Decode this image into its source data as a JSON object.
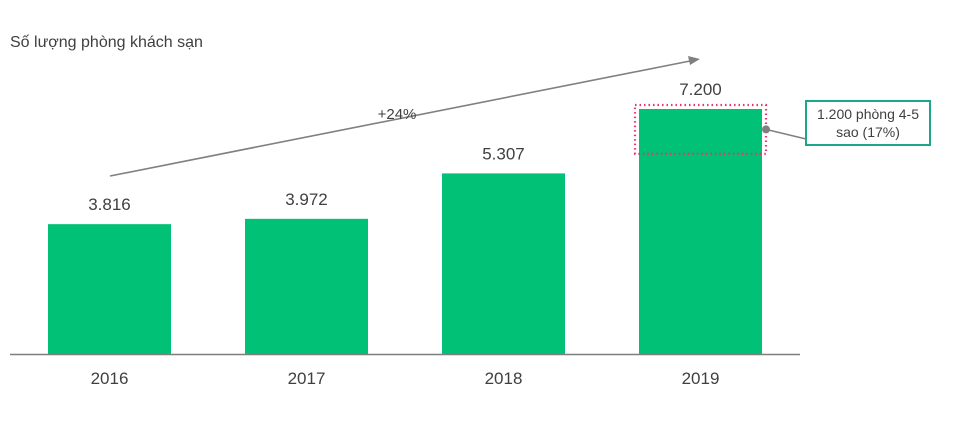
{
  "chart_data": {
    "type": "bar",
    "ylabel": "Số lượng phòng khách sạn",
    "categories": [
      "2016",
      "2017",
      "2018",
      "2019"
    ],
    "values": [
      3816,
      3972,
      5307,
      7200
    ],
    "value_labels": [
      "3.816",
      "3.972",
      "5.307",
      "7.200"
    ],
    "ylim": [
      0,
      7200
    ],
    "grid": false,
    "growth_annotation": "+24%",
    "callout": {
      "text": "1.200 phòng 4-5 sao (17%)",
      "target_category": "2019",
      "highlight_value": 1200
    },
    "colors": {
      "bar": "#00c176",
      "callout_border": "#1aa78b",
      "highlight_dots": "#e8336b",
      "arrow": "#808080",
      "axis": "#7f7f7f"
    }
  }
}
